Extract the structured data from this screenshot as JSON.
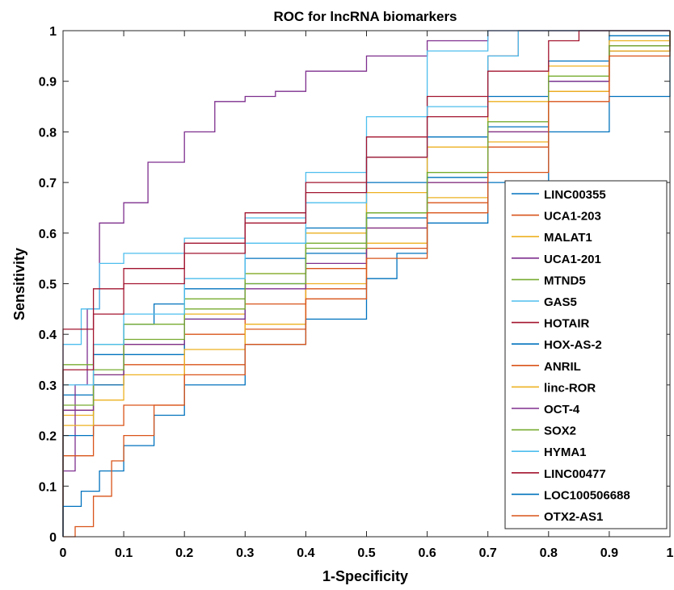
{
  "chart_data": {
    "type": "line",
    "title": "ROC for lncRNA biomarkers",
    "xlabel": "1-Specificity",
    "ylabel": "Sensitivity",
    "xlim": [
      0,
      1
    ],
    "ylim": [
      0,
      1
    ],
    "xticks": [
      "0",
      "0.1",
      "0.2",
      "0.3",
      "0.4",
      "0.5",
      "0.6",
      "0.7",
      "0.8",
      "0.9",
      "1"
    ],
    "yticks": [
      "0",
      "0.1",
      "0.2",
      "0.3",
      "0.4",
      "0.5",
      "0.6",
      "0.7",
      "0.8",
      "0.9",
      "1"
    ],
    "grid": false,
    "legend_position": "lower-right",
    "series": [
      {
        "name": "LINC00355",
        "color": "#0072BD",
        "points": [
          [
            0,
            0
          ],
          [
            0,
            0.28
          ],
          [
            0.05,
            0.36
          ],
          [
            0.1,
            0.42
          ],
          [
            0.15,
            0.46
          ],
          [
            0.2,
            0.49
          ],
          [
            0.3,
            0.55
          ],
          [
            0.4,
            0.61
          ],
          [
            0.5,
            0.7
          ],
          [
            0.6,
            0.79
          ],
          [
            0.7,
            0.87
          ],
          [
            0.8,
            0.94
          ],
          [
            0.9,
            0.99
          ],
          [
            1,
            1
          ]
        ]
      },
      {
        "name": "UCA1-203",
        "color": "#D95319",
        "points": [
          [
            0,
            0
          ],
          [
            0,
            0.25
          ],
          [
            0.05,
            0.3
          ],
          [
            0.1,
            0.34
          ],
          [
            0.2,
            0.4
          ],
          [
            0.3,
            0.46
          ],
          [
            0.4,
            0.53
          ],
          [
            0.5,
            0.61
          ],
          [
            0.6,
            0.7
          ],
          [
            0.7,
            0.8
          ],
          [
            0.8,
            0.9
          ],
          [
            0.9,
            0.97
          ],
          [
            1,
            1
          ]
        ]
      },
      {
        "name": "MALAT1",
        "color": "#EDB120",
        "points": [
          [
            0,
            0
          ],
          [
            0,
            0.24
          ],
          [
            0.05,
            0.32
          ],
          [
            0.1,
            0.38
          ],
          [
            0.2,
            0.44
          ],
          [
            0.3,
            0.52
          ],
          [
            0.4,
            0.6
          ],
          [
            0.5,
            0.68
          ],
          [
            0.6,
            0.77
          ],
          [
            0.7,
            0.86
          ],
          [
            0.8,
            0.93
          ],
          [
            0.9,
            0.98
          ],
          [
            1,
            1
          ]
        ]
      },
      {
        "name": "UCA1-201",
        "color": "#7E2F8E",
        "points": [
          [
            0,
            0
          ],
          [
            0,
            0.13
          ],
          [
            0.02,
            0.3
          ],
          [
            0.04,
            0.45
          ],
          [
            0.06,
            0.62
          ],
          [
            0.1,
            0.66
          ],
          [
            0.14,
            0.74
          ],
          [
            0.2,
            0.8
          ],
          [
            0.25,
            0.86
          ],
          [
            0.3,
            0.87
          ],
          [
            0.35,
            0.88
          ],
          [
            0.4,
            0.92
          ],
          [
            0.5,
            0.95
          ],
          [
            0.6,
            0.98
          ],
          [
            0.7,
            1
          ],
          [
            1,
            1
          ]
        ]
      },
      {
        "name": "MTND5",
        "color": "#77AC30",
        "points": [
          [
            0,
            0
          ],
          [
            0,
            0.34
          ],
          [
            0.05,
            0.38
          ],
          [
            0.1,
            0.42
          ],
          [
            0.2,
            0.47
          ],
          [
            0.3,
            0.52
          ],
          [
            0.4,
            0.58
          ],
          [
            0.5,
            0.64
          ],
          [
            0.6,
            0.72
          ],
          [
            0.7,
            0.82
          ],
          [
            0.8,
            0.91
          ],
          [
            0.9,
            0.97
          ],
          [
            1,
            1
          ]
        ]
      },
      {
        "name": "GAS5",
        "color": "#4DBEEE",
        "points": [
          [
            0,
            0
          ],
          [
            0,
            0.38
          ],
          [
            0.03,
            0.45
          ],
          [
            0.06,
            0.54
          ],
          [
            0.1,
            0.56
          ],
          [
            0.2,
            0.59
          ],
          [
            0.3,
            0.63
          ],
          [
            0.4,
            0.72
          ],
          [
            0.5,
            0.83
          ],
          [
            0.6,
            0.96
          ],
          [
            0.7,
            1
          ],
          [
            1,
            1
          ]
        ]
      },
      {
        "name": "HOTAIR",
        "color": "#A2142F",
        "points": [
          [
            0,
            0
          ],
          [
            0,
            0.41
          ],
          [
            0.05,
            0.49
          ],
          [
            0.1,
            0.53
          ],
          [
            0.2,
            0.58
          ],
          [
            0.3,
            0.64
          ],
          [
            0.4,
            0.7
          ],
          [
            0.5,
            0.79
          ],
          [
            0.6,
            0.87
          ],
          [
            0.7,
            0.95
          ],
          [
            0.75,
            1
          ],
          [
            1,
            1
          ]
        ]
      },
      {
        "name": "HOX-AS-2",
        "color": "#0072BD",
        "points": [
          [
            0,
            0
          ],
          [
            0,
            0.2
          ],
          [
            0.05,
            0.3
          ],
          [
            0.1,
            0.36
          ],
          [
            0.2,
            0.43
          ],
          [
            0.3,
            0.5
          ],
          [
            0.4,
            0.56
          ],
          [
            0.5,
            0.63
          ],
          [
            0.6,
            0.71
          ],
          [
            0.7,
            0.81
          ],
          [
            0.8,
            0.9
          ],
          [
            0.9,
            0.96
          ],
          [
            1,
            1
          ]
        ]
      },
      {
        "name": "ANRIL",
        "color": "#D95319",
        "points": [
          [
            0,
            0
          ],
          [
            0,
            0.16
          ],
          [
            0.05,
            0.22
          ],
          [
            0.1,
            0.26
          ],
          [
            0.2,
            0.34
          ],
          [
            0.3,
            0.41
          ],
          [
            0.4,
            0.49
          ],
          [
            0.5,
            0.57
          ],
          [
            0.6,
            0.66
          ],
          [
            0.7,
            0.77
          ],
          [
            0.8,
            0.88
          ],
          [
            0.9,
            0.96
          ],
          [
            1,
            1
          ]
        ]
      },
      {
        "name": "linc-ROR",
        "color": "#EDB120",
        "points": [
          [
            0,
            0
          ],
          [
            0,
            0.22
          ],
          [
            0.05,
            0.27
          ],
          [
            0.1,
            0.32
          ],
          [
            0.2,
            0.37
          ],
          [
            0.3,
            0.42
          ],
          [
            0.4,
            0.5
          ],
          [
            0.5,
            0.58
          ],
          [
            0.6,
            0.67
          ],
          [
            0.7,
            0.78
          ],
          [
            0.8,
            0.88
          ],
          [
            0.9,
            0.96
          ],
          [
            1,
            1
          ]
        ]
      },
      {
        "name": "OCT-4",
        "color": "#7E2F8E",
        "points": [
          [
            0,
            0
          ],
          [
            0,
            0.25
          ],
          [
            0.05,
            0.32
          ],
          [
            0.1,
            0.38
          ],
          [
            0.2,
            0.43
          ],
          [
            0.3,
            0.49
          ],
          [
            0.4,
            0.54
          ],
          [
            0.5,
            0.61
          ],
          [
            0.6,
            0.7
          ],
          [
            0.7,
            0.8
          ],
          [
            0.8,
            0.9
          ],
          [
            0.9,
            0.97
          ],
          [
            1,
            1
          ]
        ]
      },
      {
        "name": "SOX2",
        "color": "#77AC30",
        "points": [
          [
            0,
            0
          ],
          [
            0,
            0.26
          ],
          [
            0.05,
            0.33
          ],
          [
            0.1,
            0.39
          ],
          [
            0.2,
            0.45
          ],
          [
            0.3,
            0.5
          ],
          [
            0.4,
            0.57
          ],
          [
            0.5,
            0.64
          ],
          [
            0.6,
            0.72
          ],
          [
            0.7,
            0.82
          ],
          [
            0.8,
            0.91
          ],
          [
            0.9,
            0.97
          ],
          [
            1,
            1
          ]
        ]
      },
      {
        "name": "HYMA1",
        "color": "#4DBEEE",
        "points": [
          [
            0,
            0
          ],
          [
            0,
            0.3
          ],
          [
            0.05,
            0.38
          ],
          [
            0.1,
            0.44
          ],
          [
            0.2,
            0.51
          ],
          [
            0.3,
            0.58
          ],
          [
            0.4,
            0.66
          ],
          [
            0.5,
            0.75
          ],
          [
            0.6,
            0.85
          ],
          [
            0.7,
            0.95
          ],
          [
            0.75,
            1
          ],
          [
            1,
            1
          ]
        ]
      },
      {
        "name": "LINC00477",
        "color": "#A2142F",
        "points": [
          [
            0,
            0
          ],
          [
            0,
            0.33
          ],
          [
            0.05,
            0.44
          ],
          [
            0.1,
            0.5
          ],
          [
            0.2,
            0.56
          ],
          [
            0.3,
            0.62
          ],
          [
            0.4,
            0.68
          ],
          [
            0.5,
            0.75
          ],
          [
            0.6,
            0.83
          ],
          [
            0.7,
            0.92
          ],
          [
            0.8,
            0.98
          ],
          [
            0.85,
            1
          ],
          [
            1,
            1
          ]
        ]
      },
      {
        "name": "LOC100506688",
        "color": "#0072BD",
        "points": [
          [
            0,
            0
          ],
          [
            0,
            0.06
          ],
          [
            0.03,
            0.09
          ],
          [
            0.06,
            0.13
          ],
          [
            0.1,
            0.18
          ],
          [
            0.15,
            0.24
          ],
          [
            0.2,
            0.3
          ],
          [
            0.3,
            0.38
          ],
          [
            0.4,
            0.43
          ],
          [
            0.5,
            0.51
          ],
          [
            0.55,
            0.56
          ],
          [
            0.6,
            0.62
          ],
          [
            0.7,
            0.7
          ],
          [
            0.8,
            0.8
          ],
          [
            0.9,
            0.87
          ],
          [
            1,
            1
          ]
        ]
      },
      {
        "name": "OTX2-AS1",
        "color": "#D95319",
        "points": [
          [
            0,
            0
          ],
          [
            0.02,
            0.02
          ],
          [
            0.05,
            0.08
          ],
          [
            0.08,
            0.15
          ],
          [
            0.1,
            0.2
          ],
          [
            0.15,
            0.26
          ],
          [
            0.2,
            0.32
          ],
          [
            0.3,
            0.38
          ],
          [
            0.4,
            0.47
          ],
          [
            0.5,
            0.55
          ],
          [
            0.6,
            0.64
          ],
          [
            0.7,
            0.72
          ],
          [
            0.8,
            0.86
          ],
          [
            0.9,
            0.95
          ],
          [
            1,
            1
          ]
        ]
      }
    ]
  }
}
